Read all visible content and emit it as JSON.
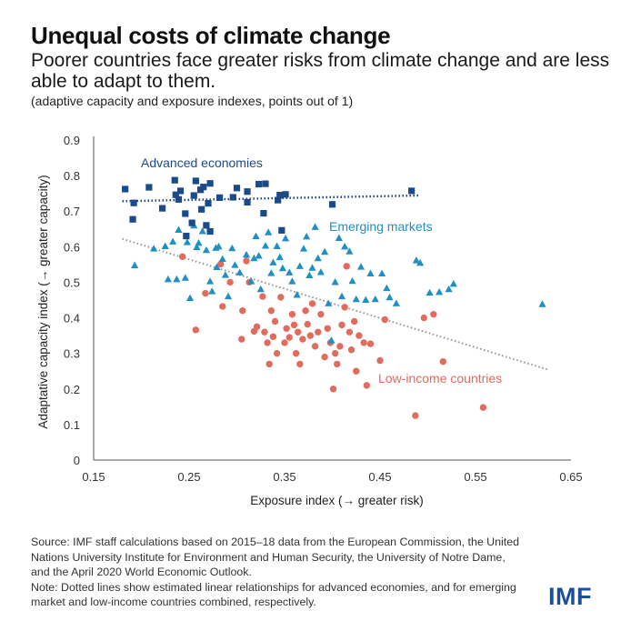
{
  "header": {
    "title": "Unequal costs of climate change",
    "subtitle": "Poorer countries face greater risks from climate change and are less able to adapt to them.",
    "units": "(adaptive capacity and exposure indexes, points out of 1)"
  },
  "footer": {
    "source": "Source: IMF staff calculations based on 2015–18 data from the European Commission, the United Nations University Institute for Environment and Human Security, the University of Notre Dame, and the April 2020 World Economic Outlook.",
    "note": "Note: Dotted lines show estimated linear relationships for advanced economies, and for emerging market and low-income countries combined, respectively.",
    "logo": "IMF"
  },
  "chart_data": {
    "type": "scatter",
    "title": "Unequal costs of climate change",
    "xlabel": "Exposure index (→ greater risk)",
    "ylabel": "Adaptative capacity index (→ greater capacity)",
    "xlim": [
      0.15,
      0.65
    ],
    "ylim": [
      0,
      0.9
    ],
    "xticks": [
      "0.15",
      "0.25",
      "0.35",
      "0.45",
      "0.55",
      "0.65"
    ],
    "yticks": [
      "0",
      "0.1",
      "0.2",
      "0.3",
      "0.4",
      "0.5",
      "0.6",
      "0.7",
      "0.8",
      "0.9"
    ],
    "grid": false,
    "series": [
      {
        "name": "Advanced economies",
        "marker": "square",
        "color": "#1b4a8a",
        "points": [
          [
            0.183,
            0.762
          ],
          [
            0.192,
            0.723
          ],
          [
            0.191,
            0.677
          ],
          [
            0.208,
            0.767
          ],
          [
            0.222,
            0.708
          ],
          [
            0.235,
            0.787
          ],
          [
            0.236,
            0.746
          ],
          [
            0.239,
            0.733
          ],
          [
            0.241,
            0.757
          ],
          [
            0.246,
            0.693
          ],
          [
            0.247,
            0.63
          ],
          [
            0.253,
            0.667
          ],
          [
            0.255,
            0.744
          ],
          [
            0.257,
            0.785
          ],
          [
            0.262,
            0.76
          ],
          [
            0.265,
            0.768
          ],
          [
            0.263,
            0.705
          ],
          [
            0.27,
            0.722
          ],
          [
            0.272,
            0.778
          ],
          [
            0.268,
            0.66
          ],
          [
            0.272,
            0.643
          ],
          [
            0.282,
            0.738
          ],
          [
            0.296,
            0.739
          ],
          [
            0.3,
            0.765
          ],
          [
            0.311,
            0.755
          ],
          [
            0.311,
            0.725
          ],
          [
            0.323,
            0.776
          ],
          [
            0.328,
            0.694
          ],
          [
            0.33,
            0.777
          ],
          [
            0.343,
            0.731
          ],
          [
            0.345,
            0.745
          ],
          [
            0.347,
            0.646
          ],
          [
            0.351,
            0.747
          ],
          [
            0.4,
            0.719
          ],
          [
            0.483,
            0.757
          ]
        ],
        "trend": {
          "x": [
            0.18,
            0.49
          ],
          "y": [
            0.728,
            0.744
          ]
        }
      },
      {
        "name": "Emerging markets",
        "marker": "triangle",
        "color": "#1f8fc4",
        "points": [
          [
            0.193,
            0.547
          ],
          [
            0.213,
            0.594
          ],
          [
            0.225,
            0.601
          ],
          [
            0.228,
            0.508
          ],
          [
            0.233,
            0.614
          ],
          [
            0.237,
            0.508
          ],
          [
            0.239,
            0.647
          ],
          [
            0.246,
            0.512
          ],
          [
            0.248,
            0.612
          ],
          [
            0.251,
            0.455
          ],
          [
            0.255,
            0.659
          ],
          [
            0.258,
            0.598
          ],
          [
            0.26,
            0.61
          ],
          [
            0.264,
            0.643
          ],
          [
            0.268,
            0.59
          ],
          [
            0.272,
            0.502
          ],
          [
            0.274,
            0.474
          ],
          [
            0.278,
            0.596
          ],
          [
            0.279,
            0.542
          ],
          [
            0.281,
            0.6
          ],
          [
            0.285,
            0.565
          ],
          [
            0.288,
            0.52
          ],
          [
            0.291,
            0.46
          ],
          [
            0.295,
            0.595
          ],
          [
            0.298,
            0.548
          ],
          [
            0.303,
            0.527
          ],
          [
            0.31,
            0.577
          ],
          [
            0.315,
            0.502
          ],
          [
            0.318,
            0.567
          ],
          [
            0.32,
            0.629
          ],
          [
            0.323,
            0.574
          ],
          [
            0.325,
            0.48
          ],
          [
            0.33,
            0.602
          ],
          [
            0.333,
            0.64
          ],
          [
            0.336,
            0.525
          ],
          [
            0.338,
            0.555
          ],
          [
            0.342,
            0.601
          ],
          [
            0.345,
            0.57
          ],
          [
            0.348,
            0.539
          ],
          [
            0.351,
            0.623
          ],
          [
            0.355,
            0.527
          ],
          [
            0.358,
            0.502
          ],
          [
            0.363,
            0.464
          ],
          [
            0.366,
            0.545
          ],
          [
            0.37,
            0.594
          ],
          [
            0.373,
            0.628
          ],
          [
            0.376,
            0.519
          ],
          [
            0.379,
            0.54
          ],
          [
            0.382,
            0.655
          ],
          [
            0.385,
            0.567
          ],
          [
            0.388,
            0.528
          ],
          [
            0.392,
            0.585
          ],
          [
            0.396,
            0.44
          ],
          [
            0.399,
            0.336
          ],
          [
            0.403,
            0.5
          ],
          [
            0.407,
            0.624
          ],
          [
            0.41,
            0.46
          ],
          [
            0.413,
            0.6
          ],
          [
            0.418,
            0.586
          ],
          [
            0.421,
            0.503
          ],
          [
            0.425,
            0.452
          ],
          [
            0.43,
            0.543
          ],
          [
            0.435,
            0.45
          ],
          [
            0.44,
            0.524
          ],
          [
            0.445,
            0.452
          ],
          [
            0.452,
            0.524
          ],
          [
            0.457,
            0.483
          ],
          [
            0.46,
            0.457
          ],
          [
            0.467,
            0.44
          ],
          [
            0.488,
            0.561
          ],
          [
            0.492,
            0.554
          ],
          [
            0.502,
            0.47
          ],
          [
            0.512,
            0.472
          ],
          [
            0.522,
            0.48
          ],
          [
            0.527,
            0.495
          ],
          [
            0.62,
            0.438
          ]
        ]
      },
      {
        "name": "Low-income countries",
        "marker": "circle",
        "color": "#e26b5e",
        "points": [
          [
            0.243,
            0.572
          ],
          [
            0.257,
            0.366
          ],
          [
            0.267,
            0.469
          ],
          [
            0.283,
            0.551
          ],
          [
            0.285,
            0.432
          ],
          [
            0.293,
            0.5
          ],
          [
            0.305,
            0.34
          ],
          [
            0.306,
            0.42
          ],
          [
            0.31,
            0.56
          ],
          [
            0.313,
            0.5
          ],
          [
            0.318,
            0.362
          ],
          [
            0.321,
            0.375
          ],
          [
            0.327,
            0.46
          ],
          [
            0.329,
            0.36
          ],
          [
            0.332,
            0.33
          ],
          [
            0.334,
            0.27
          ],
          [
            0.336,
            0.42
          ],
          [
            0.338,
            0.347
          ],
          [
            0.34,
            0.39
          ],
          [
            0.342,
            0.3
          ],
          [
            0.346,
            0.458
          ],
          [
            0.35,
            0.33
          ],
          [
            0.352,
            0.37
          ],
          [
            0.355,
            0.345
          ],
          [
            0.358,
            0.41
          ],
          [
            0.36,
            0.38
          ],
          [
            0.362,
            0.3
          ],
          [
            0.364,
            0.36
          ],
          [
            0.366,
            0.27
          ],
          [
            0.369,
            0.34
          ],
          [
            0.372,
            0.42
          ],
          [
            0.374,
            0.382
          ],
          [
            0.377,
            0.35
          ],
          [
            0.379,
            0.44
          ],
          [
            0.382,
            0.32
          ],
          [
            0.385,
            0.36
          ],
          [
            0.388,
            0.41
          ],
          [
            0.392,
            0.29
          ],
          [
            0.395,
            0.37
          ],
          [
            0.398,
            0.33
          ],
          [
            0.401,
            0.2
          ],
          [
            0.403,
            0.3
          ],
          [
            0.405,
            0.27
          ],
          [
            0.408,
            0.32
          ],
          [
            0.41,
            0.38
          ],
          [
            0.413,
            0.43
          ],
          [
            0.415,
            0.545
          ],
          [
            0.418,
            0.36
          ],
          [
            0.42,
            0.31
          ],
          [
            0.423,
            0.39
          ],
          [
            0.425,
            0.25
          ],
          [
            0.428,
            0.35
          ],
          [
            0.433,
            0.33
          ],
          [
            0.436,
            0.21
          ],
          [
            0.44,
            0.327
          ],
          [
            0.45,
            0.28
          ],
          [
            0.455,
            0.395
          ],
          [
            0.487,
            0.125
          ],
          [
            0.496,
            0.4
          ],
          [
            0.506,
            0.41
          ],
          [
            0.516,
            0.277
          ],
          [
            0.558,
            0.148
          ]
        ]
      }
    ],
    "combined_trend": {
      "name": "Emerging market and low-income countries",
      "x": [
        0.18,
        0.625
      ],
      "y": [
        0.622,
        0.255
      ]
    },
    "annotations": [
      {
        "text": "Advanced economies",
        "series": "Advanced economies"
      },
      {
        "text": "Emerging markets",
        "series": "Emerging markets"
      },
      {
        "text": "Low-income countries",
        "series": "Low-income countries"
      }
    ],
    "legend": "inline labels"
  }
}
